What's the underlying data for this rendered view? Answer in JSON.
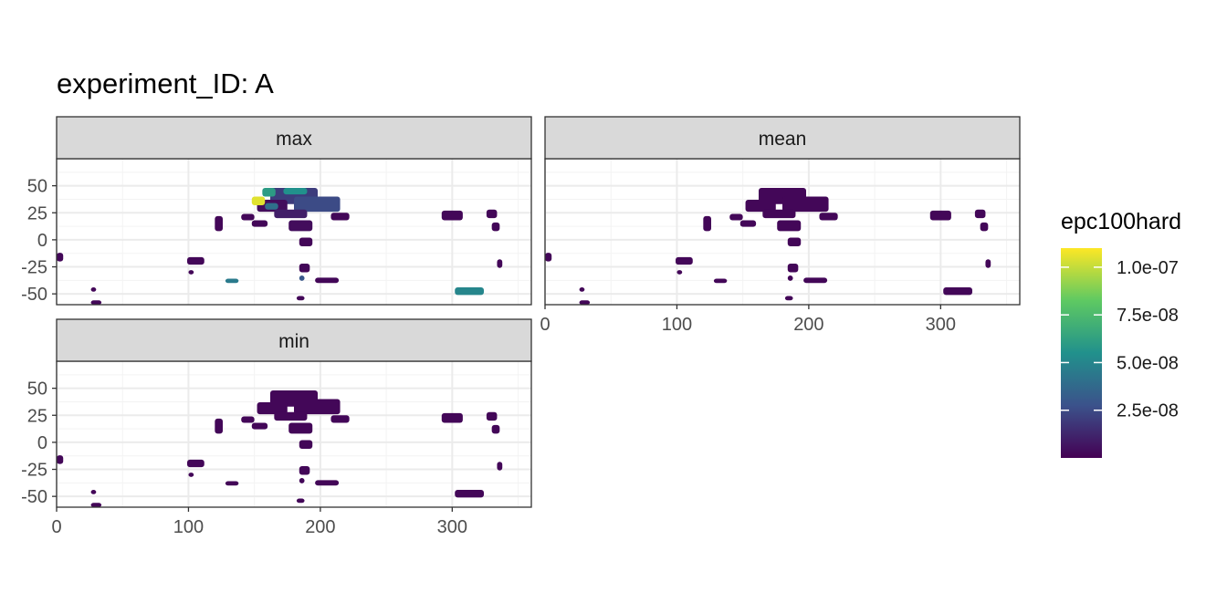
{
  "chart_data": {
    "type": "heatmap",
    "title": "experiment_ID: A",
    "fill_label": "epc100hard",
    "facets": [
      "max",
      "mean",
      "min"
    ],
    "x_ticks": [
      0,
      100,
      200,
      300
    ],
    "y_ticks": [
      50,
      25,
      0,
      -25,
      -50
    ],
    "xlim": [
      0,
      360
    ],
    "ylim": [
      -60,
      75
    ],
    "fill_range": [
      0,
      1.1e-07
    ],
    "legend": {
      "position": "right",
      "breaks": [
        1e-07,
        7.5e-08,
        5e-08,
        2.5e-08
      ],
      "labels": [
        "1.0e-07",
        "7.5e-08",
        "5.0e-08",
        "2.5e-08"
      ],
      "colors": [
        "#440154",
        "#3b528b",
        "#21918c",
        "#5ec962",
        "#fde725"
      ]
    },
    "grid": true,
    "regions": [
      {
        "x": [
          162,
          198
        ],
        "y": [
          33,
          48
        ]
      },
      {
        "x": [
          152,
          175
        ],
        "y": [
          26,
          37
        ]
      },
      {
        "x": [
          180,
          215
        ],
        "y": [
          26,
          40
        ]
      },
      {
        "x": [
          165,
          190
        ],
        "y": [
          20,
          28
        ]
      },
      {
        "x": [
          208,
          222
        ],
        "y": [
          18,
          25
        ]
      },
      {
        "x": [
          140,
          150
        ],
        "y": [
          18,
          24
        ]
      },
      {
        "x": [
          120,
          126
        ],
        "y": [
          8,
          22
        ]
      },
      {
        "x": [
          176,
          194
        ],
        "y": [
          8,
          18
        ]
      },
      {
        "x": [
          148,
          160
        ],
        "y": [
          12,
          18
        ]
      },
      {
        "x": [
          184,
          194
        ],
        "y": [
          -6,
          2
        ]
      },
      {
        "x": [
          292,
          308
        ],
        "y": [
          18,
          27
        ]
      },
      {
        "x": [
          326,
          334
        ],
        "y": [
          20,
          28
        ]
      },
      {
        "x": [
          330,
          336
        ],
        "y": [
          8,
          16
        ]
      },
      {
        "x": [
          99,
          112
        ],
        "y": [
          -23,
          -16
        ]
      },
      {
        "x": [
          100,
          104
        ],
        "y": [
          -32,
          -28
        ]
      },
      {
        "x": [
          0,
          5
        ],
        "y": [
          -20,
          -12
        ]
      },
      {
        "x": [
          184,
          192
        ],
        "y": [
          -30,
          -22
        ]
      },
      {
        "x": [
          184,
          188
        ],
        "y": [
          -38,
          -33
        ]
      },
      {
        "x": [
          196,
          214
        ],
        "y": [
          -40,
          -35
        ]
      },
      {
        "x": [
          128,
          138
        ],
        "y": [
          -40,
          -36
        ]
      },
      {
        "x": [
          302,
          324
        ],
        "y": [
          -51,
          -44
        ]
      },
      {
        "x": [
          26,
          34
        ],
        "y": [
          -60,
          -56
        ]
      },
      {
        "x": [
          182,
          188
        ],
        "y": [
          -56,
          -52
        ]
      },
      {
        "x": [
          334,
          338
        ],
        "y": [
          -26,
          -18
        ]
      },
      {
        "x": [
          26,
          30
        ],
        "y": [
          -48,
          -44
        ]
      }
    ],
    "values": {
      "max": [
        2e-08,
        4e-09,
        2.5e-08,
        1e-08,
        2e-09,
        2e-09,
        2e-09,
        4e-09,
        2e-09,
        2e-09,
        2e-09,
        2e-09,
        2e-09,
        2e-09,
        2e-09,
        2e-09,
        2e-09,
        3e-08,
        2e-09,
        4.5e-08,
        5e-08,
        2e-09,
        2e-09,
        2e-09,
        2e-09
      ],
      "mean": [
        2e-09,
        2e-09,
        2e-09,
        2e-09,
        2e-09,
        2e-09,
        2e-09,
        2e-09,
        2e-09,
        2e-09,
        2e-09,
        2e-09,
        2e-09,
        2e-09,
        2e-09,
        2e-09,
        2e-09,
        2e-09,
        2e-09,
        2e-09,
        2e-09,
        2e-09,
        2e-09,
        2e-09,
        2e-09
      ],
      "min": [
        2e-09,
        2e-09,
        2e-09,
        2e-09,
        2e-09,
        2e-09,
        2e-09,
        2e-09,
        2e-09,
        2e-09,
        2e-09,
        2e-09,
        2e-09,
        2e-09,
        2e-09,
        2e-09,
        2e-09,
        2e-09,
        2e-09,
        2e-09,
        2e-09,
        2e-09,
        2e-09,
        2e-09,
        2e-09
      ]
    },
    "hotspots": {
      "max": [
        {
          "x": [
            148,
            158
          ],
          "y": [
            32,
            40
          ],
          "value": 1.05e-07
        },
        {
          "x": [
            156,
            166
          ],
          "y": [
            40,
            48
          ],
          "value": 6e-08
        },
        {
          "x": [
            172,
            190
          ],
          "y": [
            42,
            48
          ],
          "value": 5.5e-08
        },
        {
          "x": [
            158,
            168
          ],
          "y": [
            28,
            34
          ],
          "value": 4e-08
        }
      ],
      "mean": [],
      "min": []
    }
  }
}
